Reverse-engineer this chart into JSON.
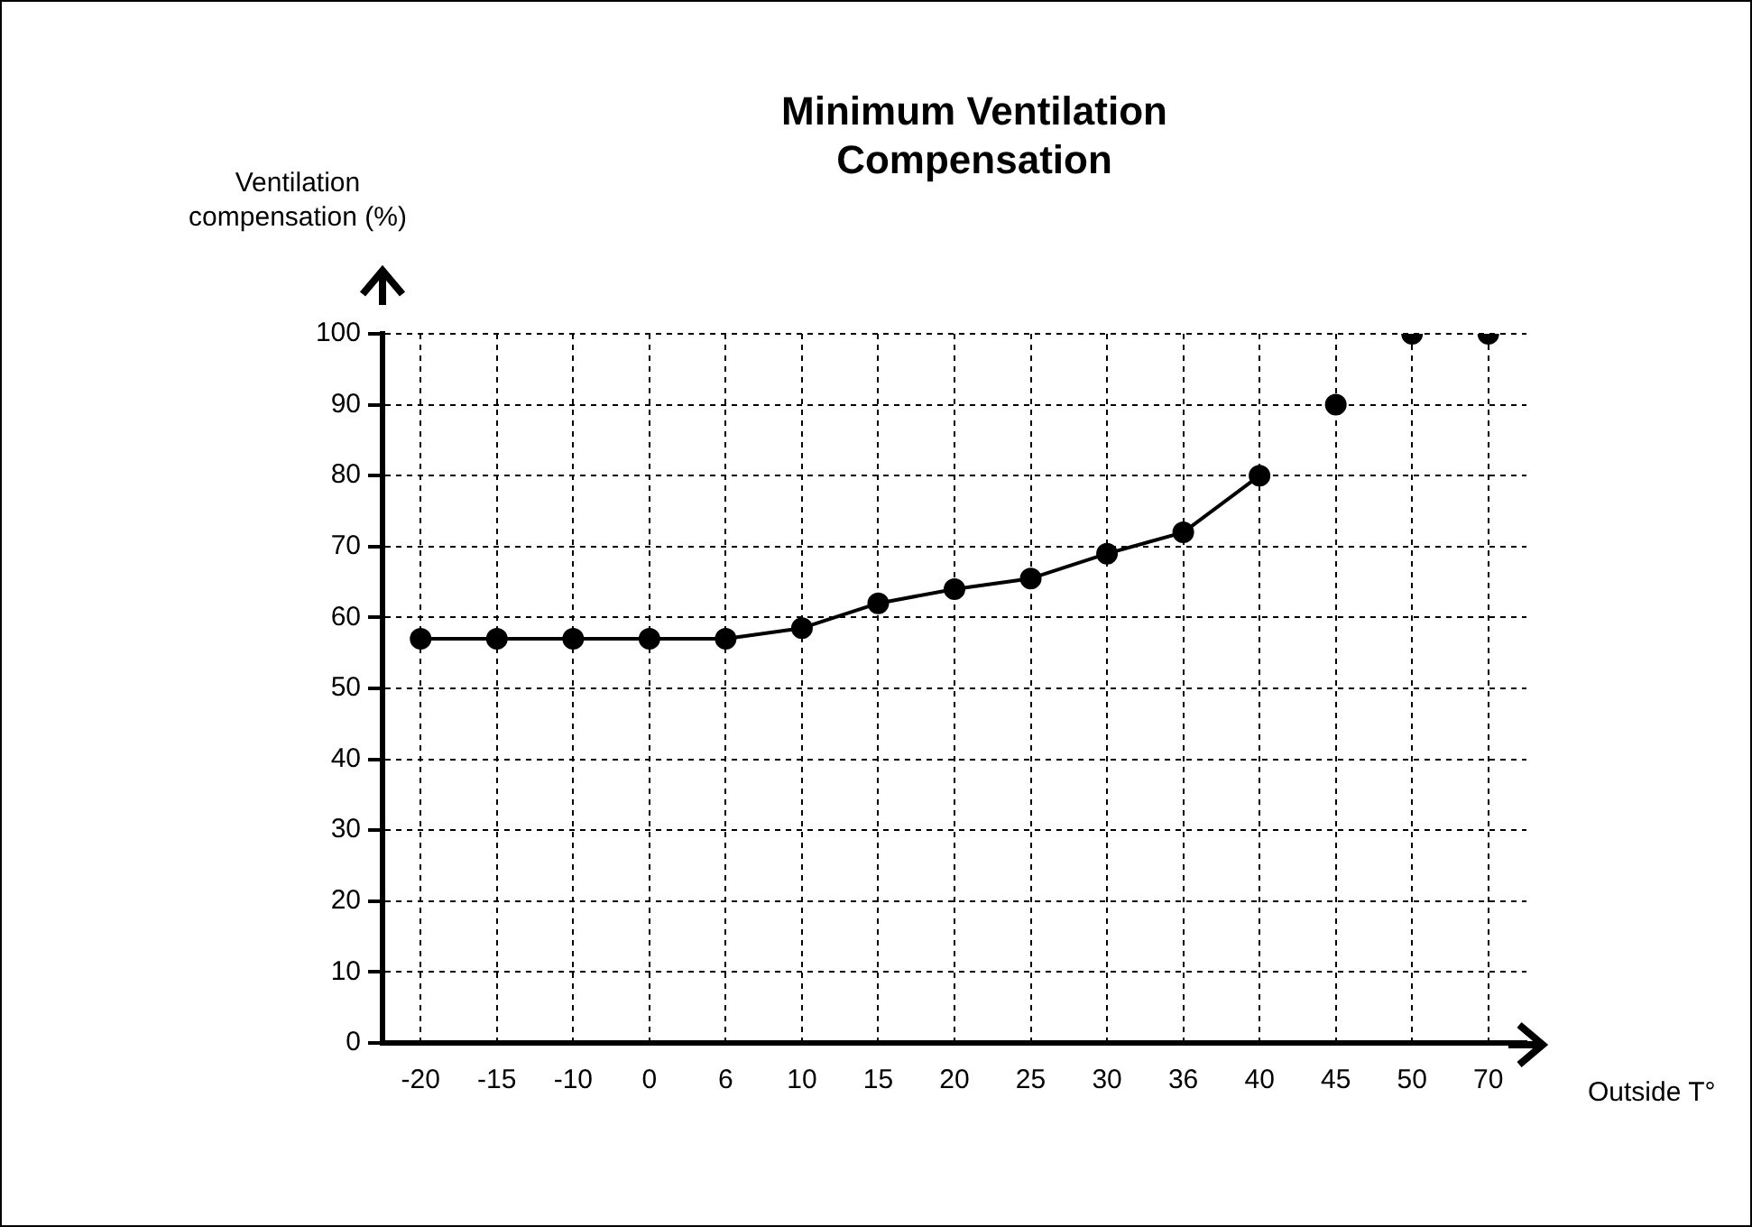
{
  "chart_data": {
    "type": "line",
    "title": "Minimum Ventilation Compensation",
    "ylabel": "Ventilation compensation (%)",
    "xlabel": "Outside T°",
    "categories": [
      "-20",
      "-15",
      "-10",
      "0",
      "6",
      "10",
      "15",
      "20",
      "25",
      "30",
      "36",
      "40",
      "45",
      "50",
      "70"
    ],
    "series": [
      {
        "color": "#000000",
        "values": [
          57,
          57,
          57,
          57,
          57,
          58.5,
          62,
          64,
          65.5,
          69,
          72,
          80,
          null,
          null,
          null
        ]
      },
      {
        "type": "scatter",
        "color": "#000000",
        "values": [
          null,
          null,
          null,
          null,
          null,
          null,
          null,
          null,
          null,
          null,
          null,
          null,
          90,
          100,
          100
        ]
      }
    ],
    "ylim": [
      0,
      100
    ],
    "yticks": [
      0,
      10,
      20,
      30,
      40,
      50,
      60,
      70,
      80,
      90,
      100
    ],
    "grid": true,
    "legend": false,
    "marker": "circle",
    "line_style": "solid"
  }
}
